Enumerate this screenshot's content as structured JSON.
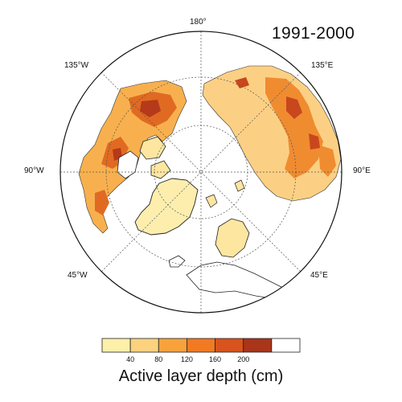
{
  "map": {
    "title": "1991-2000",
    "projection": "north polar stereographic",
    "center_label": "",
    "longitude_labels": {
      "top": "180°",
      "top_left": "135°W",
      "top_right": "135°E",
      "left": "90°W",
      "right": "90°E",
      "bottom_left": "45°W",
      "bottom_right": "45°E"
    }
  },
  "legend": {
    "title": "Active layer depth (cm)",
    "ticks": [
      "40",
      "80",
      "120",
      "160",
      "200"
    ],
    "colors": [
      "#fdf0a8",
      "#fcd27e",
      "#f9a23c",
      "#f17a22",
      "#d9531c",
      "#a9351a",
      "#ffffff"
    ]
  },
  "colors": {
    "land_unfilled": "#ffffff",
    "ice_sheet": "#fdeeae",
    "graticule": "#555555"
  }
}
